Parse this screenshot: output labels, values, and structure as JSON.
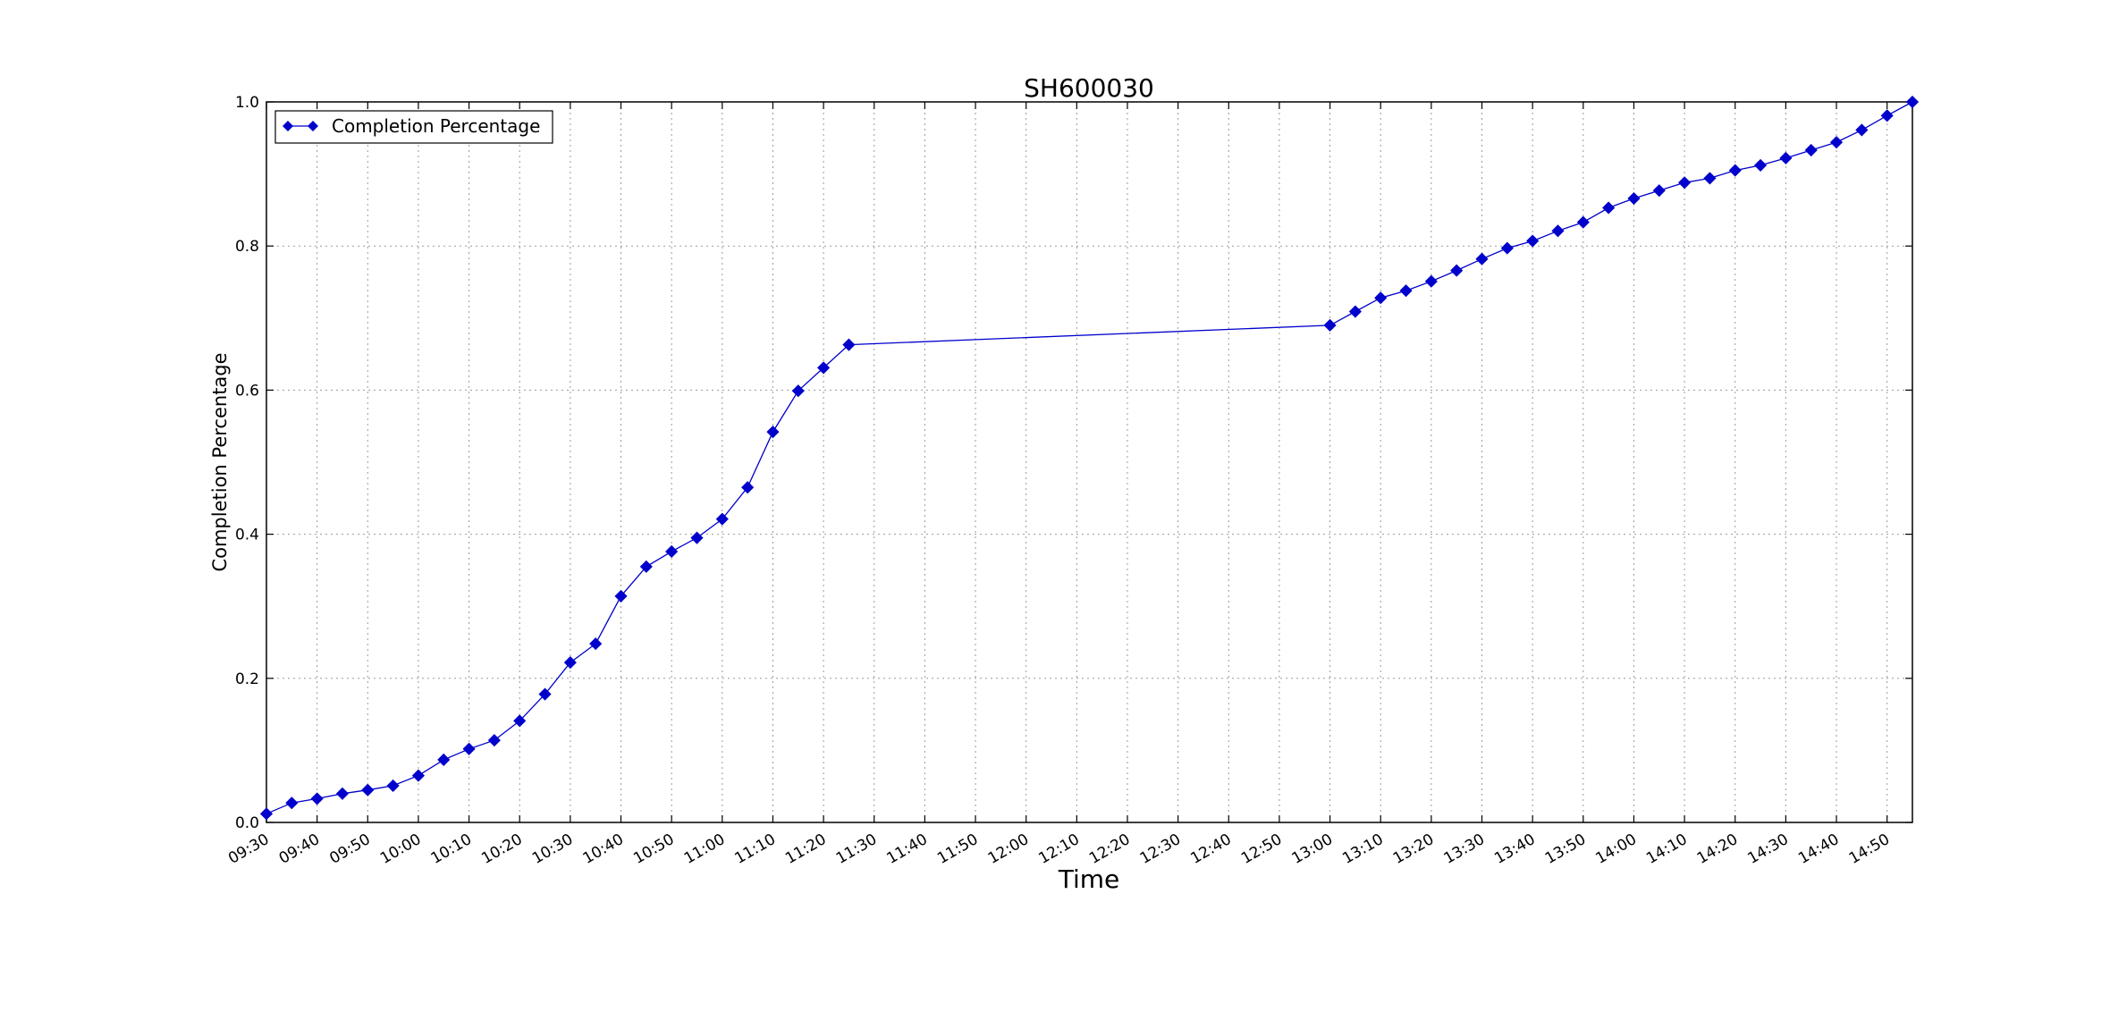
{
  "chart_data": {
    "type": "line",
    "title": "SH600030",
    "xlabel": "Time",
    "ylabel": "Completion Percentage",
    "grid": true,
    "legend_placement": "top-left",
    "series": [
      {
        "name": "Completion Percentage",
        "color": "#0000cc",
        "marker": "diamond",
        "x": [
          "09:30",
          "09:35",
          "09:40",
          "09:45",
          "09:50",
          "09:55",
          "10:00",
          "10:05",
          "10:10",
          "10:15",
          "10:20",
          "10:25",
          "10:30",
          "10:35",
          "10:40",
          "10:45",
          "10:50",
          "10:55",
          "11:00",
          "11:05",
          "11:10",
          "11:15",
          "11:20",
          "11:25",
          "13:00",
          "13:05",
          "13:10",
          "13:15",
          "13:20",
          "13:25",
          "13:30",
          "13:35",
          "13:40",
          "13:45",
          "13:50",
          "13:55",
          "14:00",
          "14:05",
          "14:10",
          "14:15",
          "14:20",
          "14:25",
          "14:30",
          "14:35",
          "14:40",
          "14:45",
          "14:50",
          "14:55"
        ],
        "values": [
          0.012,
          0.027,
          0.033,
          0.04,
          0.045,
          0.051,
          0.065,
          0.087,
          0.102,
          0.114,
          0.141,
          0.178,
          0.222,
          0.248,
          0.314,
          0.355,
          0.376,
          0.395,
          0.421,
          0.465,
          0.542,
          0.599,
          0.631,
          0.663,
          0.69,
          0.709,
          0.728,
          0.738,
          0.751,
          0.766,
          0.782,
          0.797,
          0.807,
          0.821,
          0.833,
          0.853,
          0.866,
          0.877,
          0.888,
          0.894,
          0.905,
          0.912,
          0.922,
          0.933,
          0.944,
          0.961,
          0.981,
          1.0
        ]
      }
    ],
    "x_ticks": [
      "09:30",
      "09:40",
      "09:50",
      "10:00",
      "10:10",
      "10:20",
      "10:30",
      "10:40",
      "10:50",
      "11:00",
      "11:10",
      "11:20",
      "11:30",
      "11:40",
      "11:50",
      "12:00",
      "12:10",
      "12:20",
      "12:30",
      "12:40",
      "12:50",
      "13:00",
      "13:10",
      "13:20",
      "13:30",
      "13:40",
      "13:50",
      "14:00",
      "14:10",
      "14:20",
      "14:30",
      "14:40",
      "14:50"
    ],
    "xlim": [
      "09:30",
      "14:55"
    ],
    "y_ticks": [
      "0.0",
      "0.2",
      "0.4",
      "0.6",
      "0.8",
      "1.0"
    ],
    "ylim": [
      0,
      1
    ]
  }
}
